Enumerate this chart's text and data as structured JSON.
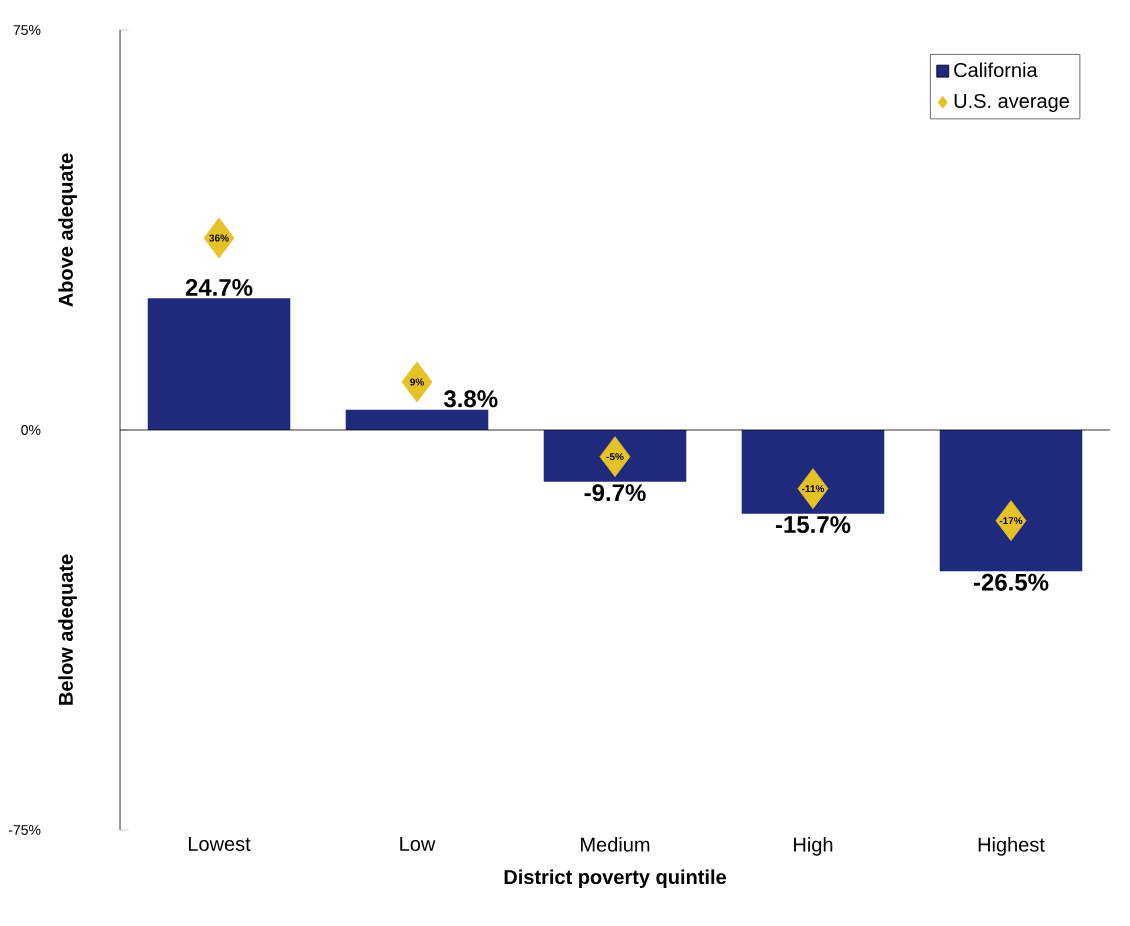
{
  "chart_data": {
    "type": "bar",
    "xlabel": "District poverty quintile",
    "categories": [
      "Lowest",
      "Low",
      "Medium",
      "High",
      "Highest"
    ],
    "series": [
      {
        "name": "California",
        "type": "bar",
        "color": "#1f2a7c",
        "values": [
          24.7,
          3.8,
          -9.7,
          -15.7,
          -26.5
        ],
        "value_labels": [
          "24.7%",
          "3.8%",
          "-9.7%",
          "-15.7%",
          "-26.5%"
        ]
      },
      {
        "name": "U.S. average",
        "type": "scatter",
        "marker": "diamond",
        "color": "#e6c229",
        "values": [
          36,
          9,
          -5,
          -11,
          -17
        ],
        "value_labels": [
          "36%",
          "9%",
          "-5%",
          "-11%",
          "-17%"
        ]
      }
    ],
    "ylim": [
      -75,
      75
    ],
    "yticks": [
      {
        "value": -75,
        "label": "-75%"
      },
      {
        "value": 0,
        "label": "0%"
      },
      {
        "value": 75,
        "label": "75%"
      }
    ],
    "legend": "top right",
    "annotations": [
      "Above adequate",
      "Below adequate"
    ]
  }
}
